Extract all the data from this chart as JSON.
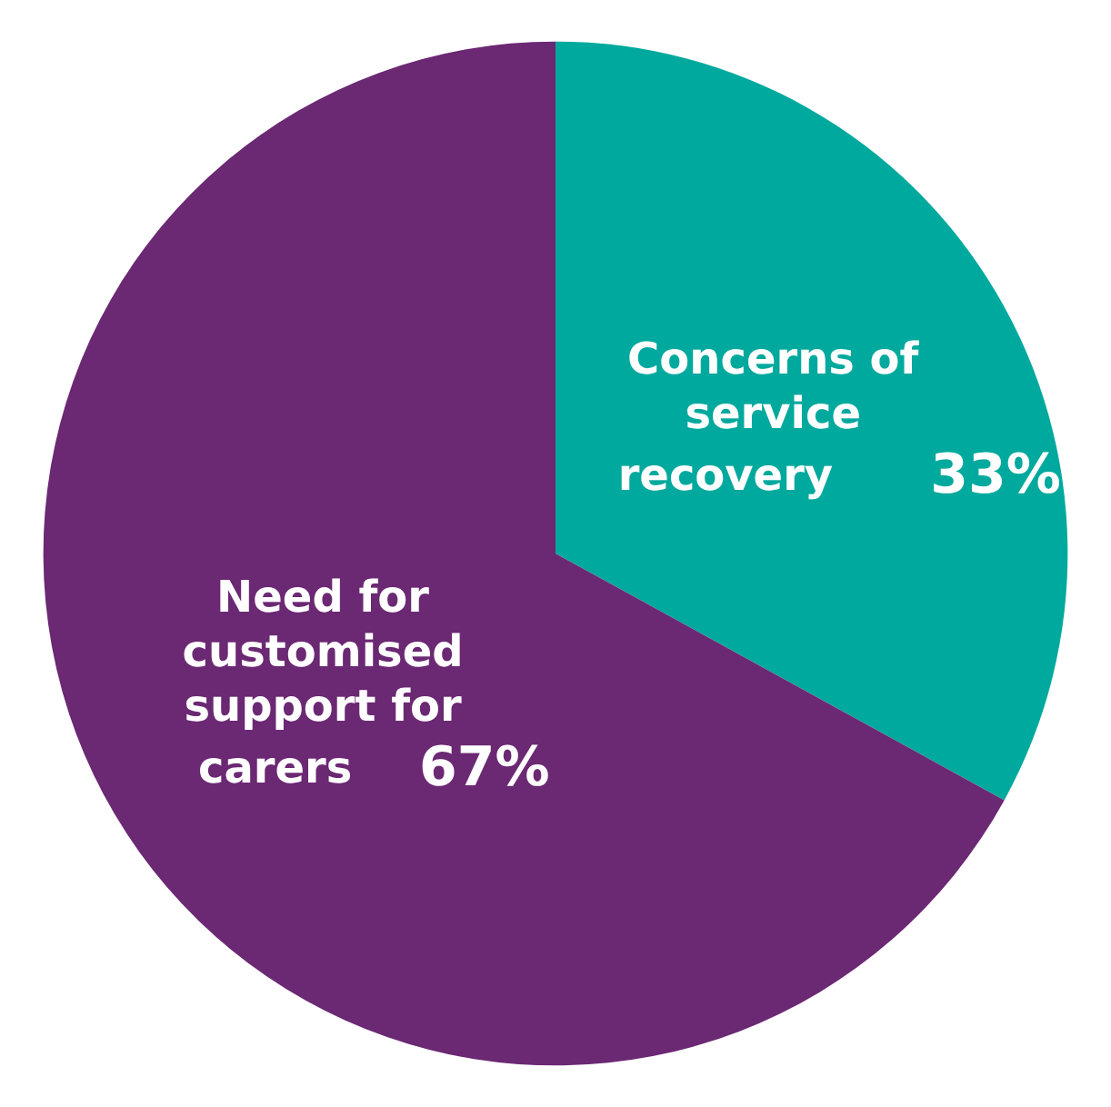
{
  "chart_data": {
    "type": "pie",
    "categories": [
      "Concerns of service recovery",
      "Need for customised support for carers"
    ],
    "values": [
      33,
      67
    ],
    "colors": [
      "#00a99d",
      "#6b2873"
    ],
    "value_labels": [
      "33%",
      "67%"
    ],
    "legend": false
  }
}
